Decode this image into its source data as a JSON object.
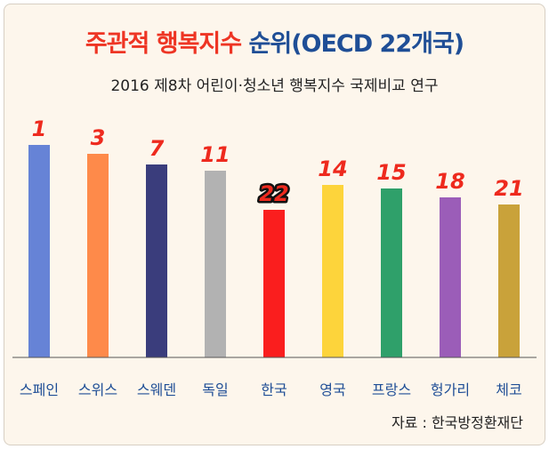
{
  "header": {
    "title_main": "주관적 행복지수 ",
    "title_accent": "순위(OECD 22개국)",
    "subtitle": "2016 제8차 어린이·청소년 행복지수 국제비교 연구"
  },
  "source": "자료 : 한국방정환재단",
  "chart_data": {
    "type": "bar",
    "title": "주관적 행복지수 순위(OECD 22개국)",
    "subtitle": "2016 제8차 어린이·청소년 행복지수 국제비교 연구",
    "categories": [
      "스페인",
      "스위스",
      "스웨덴",
      "독일",
      "한국",
      "영국",
      "프랑스",
      "헝가리",
      "체코"
    ],
    "values": [
      1,
      3,
      7,
      11,
      22,
      14,
      15,
      18,
      21
    ],
    "bar_colors": [
      "#6683d6",
      "#fe8a4a",
      "#3a3d7c",
      "#b2b2b2",
      "#fa1e1e",
      "#fdd43b",
      "#2fa06a",
      "#9b5db8",
      "#c9a23a"
    ],
    "label_color": "#ee2a1e",
    "highlight_category": "한국",
    "bar_heights_note": "bars not proportional to rank",
    "grid": false,
    "legend": "none"
  }
}
